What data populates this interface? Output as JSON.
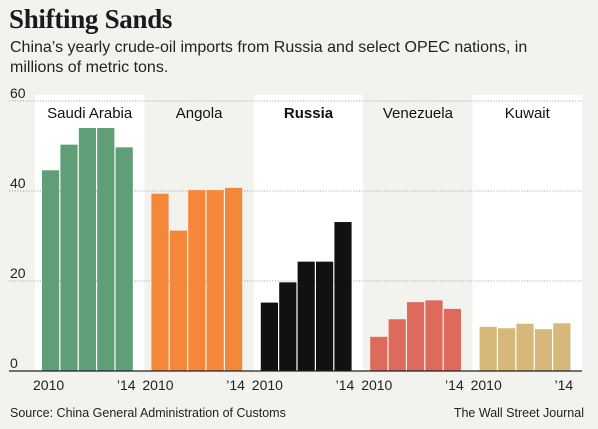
{
  "title": "Shifting Sands",
  "subtitle": "China’s yearly crude-oil imports from Russia and select OPEC nations, in millions of metric tons.",
  "source": "Source: China General Administration of Customs",
  "credit": "The Wall Street Journal",
  "chart_data": {
    "type": "bar",
    "layout": "small-multiples",
    "years": [
      2010,
      2011,
      2012,
      2013,
      2014
    ],
    "x_tick_labels": [
      "2010",
      "’14"
    ],
    "ylim": [
      0,
      60
    ],
    "yticks": [
      0,
      20,
      40,
      60
    ],
    "grid": true,
    "series": [
      {
        "name": "Saudi Arabia",
        "bold": false,
        "color": "#5f9e76",
        "values": [
          44.6,
          50.3,
          54.0,
          54.0,
          49.7
        ]
      },
      {
        "name": "Angola",
        "bold": false,
        "color": "#f5873b",
        "values": [
          39.4,
          31.2,
          40.2,
          40.2,
          40.7
        ]
      },
      {
        "name": "Russia",
        "bold": true,
        "color": "#111111",
        "values": [
          15.2,
          19.7,
          24.3,
          24.3,
          33.1
        ]
      },
      {
        "name": "Venezuela",
        "bold": false,
        "color": "#de6a5c",
        "values": [
          7.6,
          11.5,
          15.3,
          15.7,
          13.8
        ]
      },
      {
        "name": "Kuwait",
        "bold": false,
        "color": "#d6b97a",
        "values": [
          9.8,
          9.5,
          10.5,
          9.3,
          10.6
        ]
      }
    ]
  }
}
